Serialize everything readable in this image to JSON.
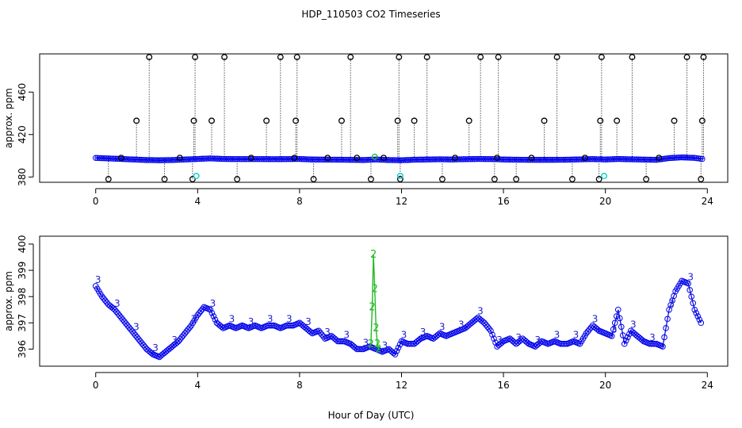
{
  "title": "HDP_110503  CO2 Timeseries",
  "xlabel": "Hour of Day (UTC)",
  "chart_data": [
    {
      "type": "scatter",
      "ylabel": "approx. ppm",
      "xlim": [
        -2.2,
        24.8
      ],
      "ylim": [
        375,
        496
      ],
      "xticks": [
        0,
        4,
        8,
        12,
        16,
        20,
        24
      ],
      "yticks": [
        380,
        420,
        460
      ],
      "xtick_labels": [
        "0",
        "4",
        "8",
        "12",
        "16",
        "20",
        "24"
      ],
      "ytick_labels": [
        "380",
        "420",
        "460"
      ],
      "series": [
        {
          "style": "blue-baseline",
          "x": [
            0.0,
            0.5,
            1.0,
            1.5,
            2.0,
            2.5,
            3.0,
            3.5,
            4.0,
            4.5,
            5.0,
            5.5,
            6.0,
            6.5,
            7.0,
            7.5,
            8.0,
            8.5,
            9.0,
            9.5,
            10.0,
            10.5,
            11.0,
            11.5,
            12.0,
            12.5,
            13.0,
            13.5,
            14.0,
            14.5,
            15.0,
            15.5,
            16.0,
            16.5,
            17.0,
            17.5,
            18.0,
            18.5,
            19.0,
            19.5,
            20.0,
            20.5,
            21.0,
            21.5,
            22.0,
            22.5,
            23.0,
            23.5,
            23.8
          ],
          "values": [
            398,
            397.5,
            397,
            396.5,
            396,
            395.8,
            396,
            396.5,
            397,
            397.5,
            397,
            396.9,
            396.9,
            396.9,
            396.8,
            396.9,
            397,
            396.5,
            396.4,
            396.3,
            396.2,
            396,
            396.5,
            396,
            395.8,
            396.3,
            396.5,
            396.7,
            396.5,
            396.8,
            397,
            396.9,
            396.5,
            396.3,
            396.2,
            396.2,
            396.2,
            396.3,
            396.6,
            396.9,
            396.5,
            397,
            396.7,
            396.4,
            396.2,
            397.8,
            398.5,
            398,
            397
          ]
        },
        {
          "style": "black-spikes",
          "x": [
            0.5,
            1.0,
            1.6,
            2.1,
            2.7,
            3.3,
            3.8,
            3.85,
            3.9,
            4.55,
            5.05,
            5.55,
            6.1,
            6.7,
            7.25,
            7.8,
            7.85,
            7.9,
            8.55,
            9.1,
            9.65,
            10.0,
            10.25,
            10.8,
            11.3,
            11.85,
            11.9,
            11.95,
            12.5,
            13.0,
            13.6,
            14.1,
            14.65,
            15.1,
            15.65,
            15.75,
            15.8,
            16.5,
            17.1,
            17.6,
            18.1,
            18.7,
            19.2,
            19.75,
            19.8,
            19.85,
            20.45,
            21.05,
            21.6,
            22.1,
            22.7,
            23.2,
            23.75,
            23.8,
            23.85
          ],
          "values": [
            378,
            398,
            433,
            493,
            378,
            398,
            378,
            433,
            493,
            433,
            493,
            378,
            398,
            433,
            493,
            398,
            433,
            493,
            378,
            398,
            433,
            493,
            398,
            378,
            398,
            433,
            493,
            378,
            433,
            493,
            378,
            398,
            433,
            493,
            378,
            398,
            493,
            378,
            398,
            433,
            493,
            378,
            398,
            378,
            433,
            493,
            433,
            493,
            378,
            398,
            433,
            493,
            378,
            433,
            493
          ]
        },
        {
          "style": "cyan-points",
          "x": [
            3.95,
            11.95,
            19.95
          ],
          "values": [
            381,
            381,
            381
          ]
        },
        {
          "style": "green-points",
          "x": [
            10.95
          ],
          "values": [
            399
          ]
        }
      ]
    },
    {
      "type": "line",
      "ylabel": "approx. ppm",
      "xlim": [
        -2.2,
        24.8
      ],
      "ylim": [
        395.35,
        400.3
      ],
      "xticks": [
        0,
        4,
        8,
        12,
        16,
        20,
        24
      ],
      "yticks": [
        396,
        397,
        398,
        399,
        400
      ],
      "xtick_labels": [
        "0",
        "4",
        "8",
        "12",
        "16",
        "20",
        "24"
      ],
      "ytick_labels": [
        "396",
        "397",
        "398",
        "399",
        "400"
      ],
      "series": [
        {
          "style": "blue-circles-with-3",
          "x": [
            0.0,
            0.25,
            0.5,
            0.75,
            1.0,
            1.25,
            1.5,
            1.75,
            2.0,
            2.25,
            2.5,
            2.75,
            3.0,
            3.25,
            3.5,
            3.75,
            4.0,
            4.25,
            4.5,
            4.75,
            5.0,
            5.25,
            5.5,
            5.75,
            6.0,
            6.25,
            6.5,
            6.75,
            7.0,
            7.25,
            7.5,
            7.75,
            8.0,
            8.25,
            8.5,
            8.75,
            9.0,
            9.25,
            9.5,
            9.75,
            10.0,
            10.25,
            10.5,
            10.75,
            11.0,
            11.25,
            11.5,
            11.75,
            12.0,
            12.25,
            12.5,
            12.75,
            13.0,
            13.25,
            13.5,
            13.75,
            14.0,
            14.25,
            14.5,
            14.75,
            15.0,
            15.25,
            15.5,
            15.75,
            16.0,
            16.25,
            16.5,
            16.75,
            17.0,
            17.25,
            17.5,
            17.75,
            18.0,
            18.25,
            18.5,
            18.75,
            19.0,
            19.25,
            19.5,
            19.75,
            20.0,
            20.25,
            20.5,
            20.75,
            21.0,
            21.25,
            21.5,
            21.75,
            22.0,
            22.25,
            22.5,
            22.75,
            23.0,
            23.25,
            23.5,
            23.75
          ],
          "values": [
            398.4,
            398.0,
            397.7,
            397.5,
            397.2,
            396.9,
            396.6,
            396.3,
            396.0,
            395.8,
            395.7,
            395.9,
            396.1,
            396.3,
            396.6,
            396.9,
            397.3,
            397.6,
            397.5,
            397.0,
            396.8,
            396.9,
            396.8,
            396.9,
            396.8,
            396.9,
            396.8,
            396.9,
            396.9,
            396.8,
            396.9,
            396.9,
            397.0,
            396.8,
            396.6,
            396.7,
            396.4,
            396.5,
            396.3,
            396.3,
            396.2,
            396.0,
            396.0,
            396.1,
            396.0,
            395.9,
            396.0,
            395.8,
            396.3,
            396.2,
            396.2,
            396.4,
            396.5,
            396.4,
            396.6,
            396.5,
            396.6,
            396.7,
            396.8,
            397.0,
            397.2,
            397.0,
            396.7,
            396.1,
            396.3,
            396.4,
            396.2,
            396.4,
            396.2,
            396.1,
            396.3,
            396.2,
            396.3,
            396.2,
            396.2,
            396.3,
            396.2,
            396.6,
            396.9,
            396.7,
            396.6,
            396.5,
            397.5,
            396.2,
            396.7,
            396.5,
            396.3,
            396.2,
            396.2,
            396.1,
            397.5,
            398.2,
            398.6,
            398.5,
            397.5,
            397.0
          ]
        },
        {
          "style": "green-line-with-2",
          "x": [
            10.8,
            10.85,
            10.9,
            10.95,
            11.0,
            11.05,
            11.1
          ],
          "values": [
            396.2,
            397.6,
            399.6,
            398.3,
            396.8,
            396.2,
            396.0
          ]
        }
      ]
    }
  ]
}
